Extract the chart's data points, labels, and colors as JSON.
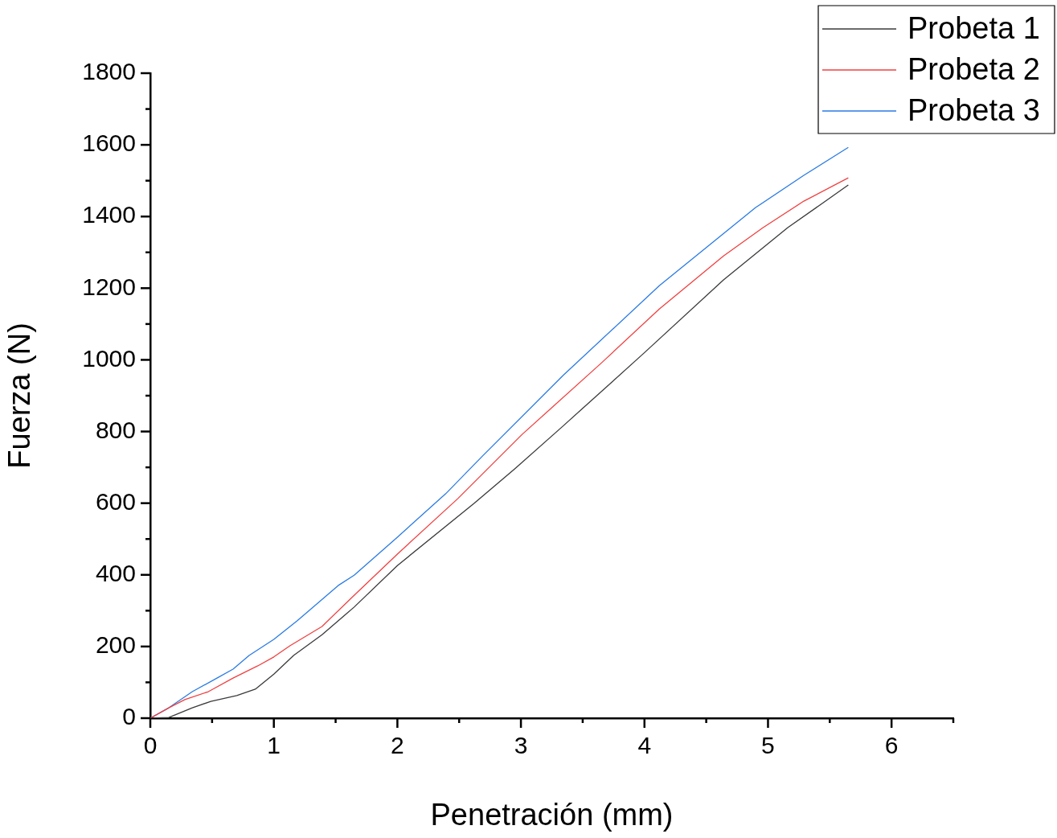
{
  "chart_data": {
    "type": "line",
    "xlabel": "Penetración (mm)",
    "ylabel": "Fuerza (N)",
    "xlim": [
      0,
      6.5
    ],
    "xticks": [
      0,
      {
        "value": 0.5,
        "label": null
      },
      1,
      {
        "value": 1.5,
        "label": null
      },
      2,
      {
        "value": 2.5,
        "label": null
      },
      3,
      {
        "value": 3.5,
        "label": null
      },
      4,
      {
        "value": 4.5,
        "label": null
      },
      5,
      {
        "value": 5.5,
        "label": null
      },
      6,
      {
        "value": 6.5,
        "label": null
      }
    ],
    "ylim": [
      0,
      1800
    ],
    "yticks": [
      0,
      {
        "value": 100,
        "label": null
      },
      200,
      {
        "value": 300,
        "label": null
      },
      400,
      {
        "value": 500,
        "label": null
      },
      600,
      {
        "value": 700,
        "label": null
      },
      800,
      {
        "value": 900,
        "label": null
      },
      1000,
      {
        "value": 1100,
        "label": null
      },
      1200,
      {
        "value": 1300,
        "label": null
      },
      1400,
      {
        "value": 1500,
        "label": null
      },
      1600,
      {
        "value": 1700,
        "label": null
      },
      1800
    ],
    "grid": false,
    "legend": "top right",
    "marker": "none",
    "line_style": "solid",
    "series": [
      {
        "name": "Probeta 1",
        "color": "#3a3a3a",
        "x": [
          0,
          0.15,
          0.34,
          0.49,
          0.7,
          0.85,
          1.0,
          1.16,
          1.39,
          1.65,
          2.0,
          2.62,
          2.95,
          3.34,
          3.99,
          4.64,
          5.16,
          5.42,
          5.65
        ],
        "values": [
          0,
          2,
          29,
          47,
          63,
          81,
          123,
          175,
          233,
          310,
          426,
          599,
          696,
          815,
          1017,
          1223,
          1369,
          1432,
          1488
        ]
      },
      {
        "name": "Probeta 2",
        "color": "#f04040",
        "x": [
          0,
          0.15,
          0.28,
          0.47,
          0.67,
          0.87,
          1.0,
          1.13,
          1.39,
          1.65,
          2.0,
          2.49,
          3.01,
          3.66,
          4.12,
          4.64,
          4.96,
          5.29,
          5.65
        ],
        "values": [
          0,
          29,
          52,
          74,
          112,
          146,
          171,
          202,
          256,
          343,
          458,
          613,
          792,
          994,
          1142,
          1290,
          1369,
          1443,
          1508
        ]
      },
      {
        "name": "Probeta 3",
        "color": "#2a7be4",
        "x": [
          0,
          0.15,
          0.34,
          0.54,
          0.67,
          0.8,
          1.0,
          1.19,
          1.52,
          1.65,
          2.0,
          2.39,
          2.69,
          3.34,
          4.12,
          4.9,
          5.29,
          5.65
        ],
        "values": [
          0,
          29,
          74,
          112,
          137,
          175,
          220,
          272,
          370,
          399,
          505,
          626,
          732,
          956,
          1207,
          1425,
          1515,
          1593
        ]
      }
    ]
  }
}
